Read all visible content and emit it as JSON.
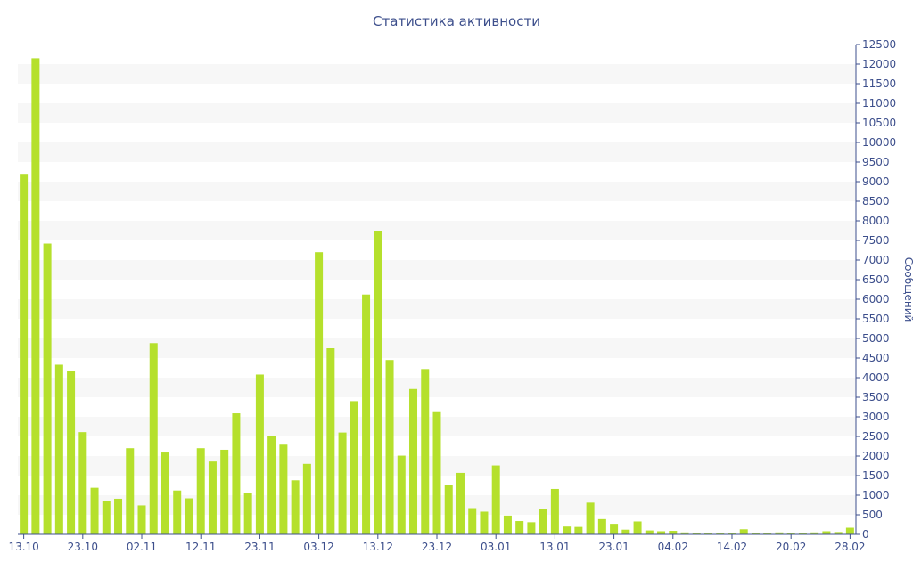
{
  "chart_data": {
    "type": "bar",
    "title": "Статистика активности",
    "xlabel": "",
    "ylabel": "Сообщений",
    "ylim": [
      0,
      12500
    ],
    "y_tick_step": 500,
    "grid": "alternating horizontal bands",
    "y_axis_side": "right",
    "bar_color": "#b5e02c",
    "band_color": "#f7f7f7",
    "text_color": "#3d4f8c",
    "x_tick_labels": [
      {
        "label": "13.10",
        "index": 0
      },
      {
        "label": "23.10",
        "index": 5
      },
      {
        "label": "02.11",
        "index": 10
      },
      {
        "label": "12.11",
        "index": 15
      },
      {
        "label": "23.11",
        "index": 20
      },
      {
        "label": "03.12",
        "index": 25
      },
      {
        "label": "13.12",
        "index": 30
      },
      {
        "label": "23.12",
        "index": 35
      },
      {
        "label": "03.01",
        "index": 40
      },
      {
        "label": "13.01",
        "index": 45
      },
      {
        "label": "23.01",
        "index": 50
      },
      {
        "label": "04.02",
        "index": 55
      },
      {
        "label": "14.02",
        "index": 60
      },
      {
        "label": "20.02",
        "index": 65
      },
      {
        "label": "28.02",
        "index": 70
      }
    ],
    "values": [
      9200,
      12150,
      7420,
      4330,
      4160,
      2610,
      1190,
      850,
      910,
      2200,
      740,
      4880,
      2090,
      1120,
      920,
      2200,
      1860,
      2160,
      3090,
      1060,
      4080,
      2520,
      2290,
      1380,
      1800,
      7200,
      4750,
      2600,
      3400,
      6120,
      7750,
      4450,
      2010,
      3710,
      4220,
      3120,
      1270,
      1570,
      670,
      580,
      1760,
      480,
      340,
      310,
      650,
      1160,
      200,
      190,
      810,
      390,
      270,
      120,
      330,
      100,
      80,
      90,
      50,
      40,
      30,
      30,
      30,
      130,
      30,
      30,
      50,
      30,
      30,
      50,
      80,
      60,
      170
    ]
  }
}
